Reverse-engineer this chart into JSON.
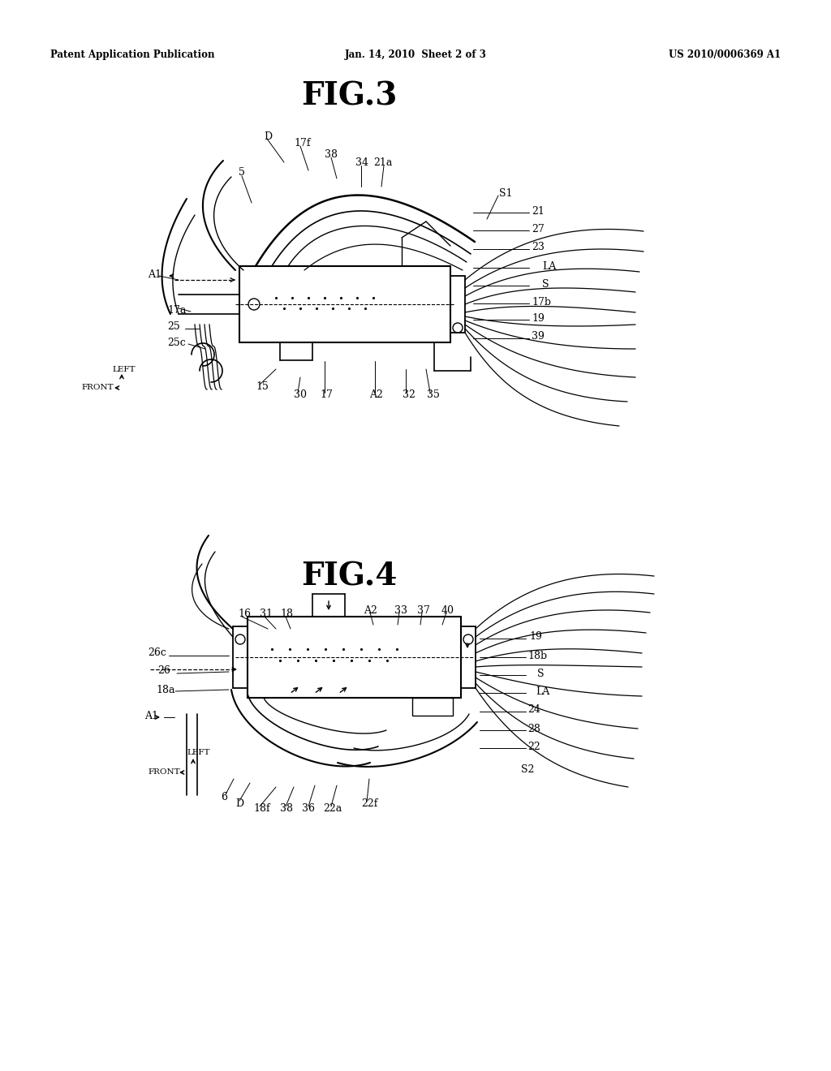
{
  "background_color": "#ffffff",
  "header_left": "Patent Application Publication",
  "header_center": "Jan. 14, 2010  Sheet 2 of 3",
  "header_right": "US 2010/0006369 A1",
  "fig3_title": "FIG.3",
  "fig4_title": "FIG.4",
  "line_color": "#000000",
  "text_color": "#000000",
  "fig3_labels": {
    "top": [
      [
        "D",
        330,
        168
      ],
      [
        "17f",
        368,
        178
      ],
      [
        "38",
        408,
        193
      ],
      [
        "34",
        445,
        203
      ],
      [
        "21a",
        468,
        203
      ],
      [
        "5",
        302,
        215
      ],
      [
        "S1",
        618,
        238
      ]
    ],
    "right": [
      [
        "21",
        660,
        260
      ],
      [
        "27",
        660,
        283
      ],
      [
        "23",
        660,
        306
      ],
      [
        "LA",
        672,
        328
      ],
      [
        "S",
        672,
        348
      ],
      [
        "17b",
        658,
        368
      ],
      [
        "19",
        658,
        388
      ],
      [
        "39",
        658,
        415
      ]
    ],
    "left": [
      [
        "A1",
        188,
        340
      ],
      [
        "17a",
        210,
        385
      ],
      [
        "25",
        210,
        408
      ],
      [
        "25c",
        210,
        428
      ]
    ],
    "bottom": [
      [
        "15",
        318,
        480
      ],
      [
        "30",
        368,
        488
      ],
      [
        "17",
        398,
        488
      ],
      [
        "A2",
        460,
        488
      ],
      [
        "32",
        500,
        488
      ],
      [
        "35",
        528,
        488
      ]
    ]
  },
  "fig4_labels": {
    "top": [
      [
        "16",
        300,
        760
      ],
      [
        "31",
        328,
        760
      ],
      [
        "18",
        355,
        760
      ],
      [
        "A2",
        450,
        755
      ],
      [
        "33",
        490,
        755
      ],
      [
        "37",
        518,
        755
      ],
      [
        "40",
        548,
        755
      ]
    ],
    "right": [
      [
        "19",
        660,
        788
      ],
      [
        "18b",
        658,
        810
      ],
      [
        "S",
        672,
        832
      ],
      [
        "LA",
        672,
        852
      ],
      [
        "24",
        660,
        878
      ],
      [
        "28",
        660,
        900
      ],
      [
        "22",
        660,
        920
      ],
      [
        "S2",
        650,
        955
      ]
    ],
    "left": [
      [
        "26c",
        188,
        808
      ],
      [
        "26",
        200,
        830
      ],
      [
        "18a",
        200,
        852
      ],
      [
        "A1",
        185,
        888
      ]
    ],
    "bottom": [
      [
        "6",
        278,
        985
      ],
      [
        "D",
        298,
        992
      ],
      [
        "18f",
        320,
        998
      ],
      [
        "38",
        355,
        998
      ],
      [
        "36",
        385,
        998
      ],
      [
        "22a",
        415,
        998
      ],
      [
        "22f",
        460,
        990
      ]
    ]
  }
}
